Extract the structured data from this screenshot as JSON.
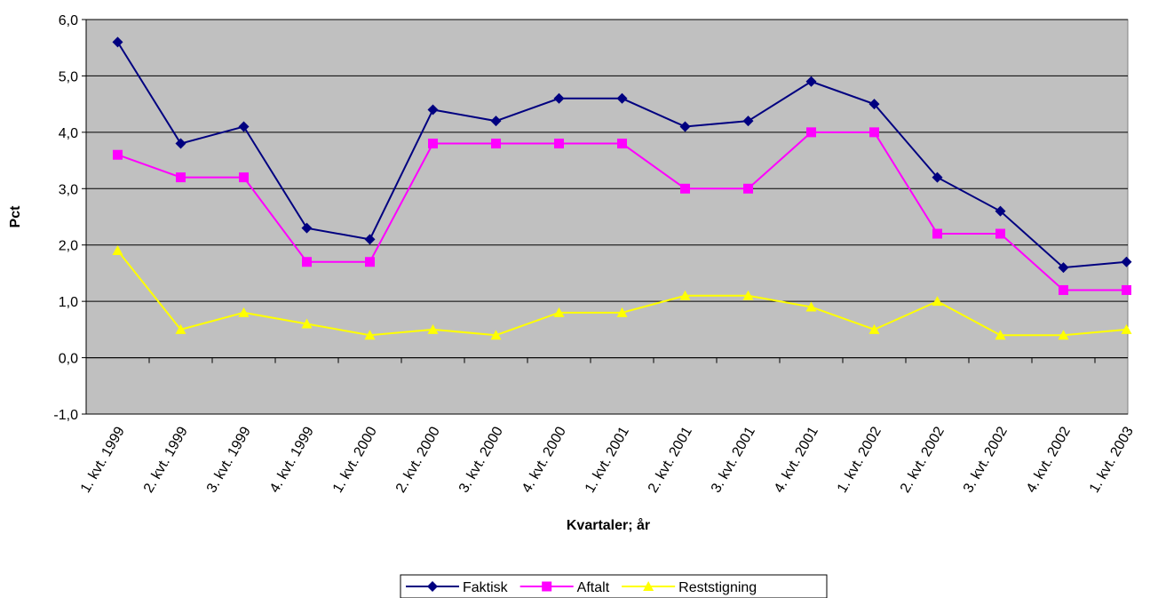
{
  "chart_data": {
    "type": "line",
    "x_label": "Kvartaler; år",
    "y_label": "Pct",
    "categories": [
      "1. kvt. 1999",
      "2. kvt. 1999",
      "3. kvt. 1999",
      "4. kvt. 1999",
      "1. kvt. 2000",
      "2. kvt. 2000",
      "3. kvt. 2000",
      "4. kvt. 2000",
      "1. kvt. 2001",
      "2. kvt. 2001",
      "3. kvt. 2001",
      "4. kvt. 2001",
      "1. kvt. 2002",
      "2. kvt. 2002",
      "3. kvt. 2002",
      "4. kvt. 2002",
      "1. kvt. 2003"
    ],
    "series": [
      {
        "name": "Faktisk",
        "color": "#000080",
        "marker": "diamond",
        "values": [
          5.6,
          3.8,
          4.1,
          2.3,
          2.1,
          4.4,
          4.2,
          4.6,
          4.6,
          4.1,
          4.2,
          4.9,
          4.5,
          3.2,
          2.6,
          1.6,
          1.7
        ]
      },
      {
        "name": "Aftalt",
        "color": "#ff00ff",
        "marker": "square",
        "values": [
          3.6,
          3.2,
          3.2,
          1.7,
          1.7,
          3.8,
          3.8,
          3.8,
          3.8,
          3.0,
          3.0,
          4.0,
          4.0,
          2.2,
          2.2,
          1.2,
          1.2
        ]
      },
      {
        "name": "Reststigning",
        "color": "#ffff00",
        "marker": "triangle",
        "values": [
          1.9,
          0.5,
          0.8,
          0.6,
          0.4,
          0.5,
          0.4,
          0.8,
          0.8,
          1.1,
          1.1,
          0.9,
          0.5,
          1.0,
          0.4,
          0.4,
          0.5
        ]
      }
    ],
    "ylim": [
      -1,
      6
    ],
    "yticks": [
      {
        "value": -1,
        "label": "-1,0"
      },
      {
        "value": 0,
        "label": "0,0"
      },
      {
        "value": 1,
        "label": "1,0"
      },
      {
        "value": 2,
        "label": "2,0"
      },
      {
        "value": 3,
        "label": "3,0"
      },
      {
        "value": 4,
        "label": "4,0"
      },
      {
        "value": 5,
        "label": "5,0"
      },
      {
        "value": 6,
        "label": "6,0"
      }
    ],
    "grid": true,
    "plot_background": "#c0c0c0",
    "legend_position": "bottom"
  }
}
